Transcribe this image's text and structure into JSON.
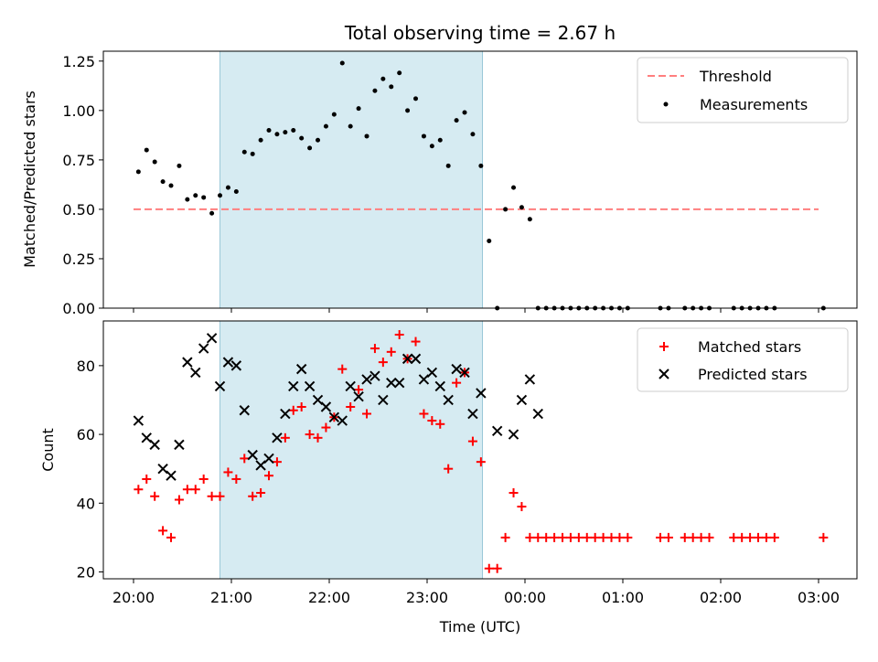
{
  "chart_data": [
    {
      "type": "scatter",
      "title": "Total observing time = 2.67 h",
      "ylabel": "Matched/Predicted stars",
      "xlabel": "",
      "ylim": [
        0,
        1.3
      ],
      "yticks": [
        "0.00",
        "0.25",
        "0.50",
        "0.75",
        "1.00",
        "1.25"
      ],
      "shaded_region": [
        "20:53",
        "23:34"
      ],
      "legend_position": "top-right",
      "colors": {
        "threshold": "#ff7f7f",
        "measurements": "#000000",
        "shade": "#add8e6"
      },
      "threshold": {
        "name": "Threshold",
        "value": 0.5,
        "x": [
          "20:00",
          "03:00"
        ]
      },
      "series": [
        {
          "name": "Measurements",
          "x": [
            "20:03",
            "20:08",
            "20:13",
            "20:18",
            "20:23",
            "20:28",
            "20:33",
            "20:38",
            "20:43",
            "20:48",
            "20:53",
            "20:58",
            "21:03",
            "21:08",
            "21:13",
            "21:18",
            "21:23",
            "21:28",
            "21:33",
            "21:38",
            "21:43",
            "21:48",
            "21:53",
            "21:58",
            "22:03",
            "22:08",
            "22:13",
            "22:18",
            "22:23",
            "22:28",
            "22:33",
            "22:38",
            "22:43",
            "22:48",
            "22:53",
            "22:58",
            "23:03",
            "23:08",
            "23:13",
            "23:18",
            "23:23",
            "23:28",
            "23:33",
            "23:38",
            "23:43",
            "23:48",
            "23:53",
            "23:58",
            "00:03",
            "00:08",
            "00:13",
            "00:18",
            "00:23",
            "00:28",
            "00:33",
            "00:38",
            "00:43",
            "00:48",
            "00:53",
            "00:58",
            "01:03",
            "01:23",
            "01:28",
            "01:38",
            "01:43",
            "01:48",
            "01:53",
            "02:08",
            "02:13",
            "02:18",
            "02:23",
            "02:28",
            "02:33",
            "03:03"
          ],
          "y": [
            0.69,
            0.8,
            0.74,
            0.64,
            0.62,
            0.72,
            0.55,
            0.57,
            0.56,
            0.48,
            0.57,
            0.61,
            0.59,
            0.79,
            0.78,
            0.85,
            0.9,
            0.88,
            0.89,
            0.9,
            0.86,
            0.81,
            0.85,
            0.92,
            0.98,
            1.24,
            0.92,
            1.01,
            0.87,
            1.1,
            1.16,
            1.12,
            1.19,
            1.0,
            1.06,
            0.87,
            0.82,
            0.85,
            0.72,
            0.95,
            0.99,
            0.88,
            0.72,
            0.34,
            0.0,
            0.5,
            0.61,
            0.51,
            0.45,
            0.0,
            0.0,
            0.0,
            0.0,
            0.0,
            0.0,
            0.0,
            0.0,
            0.0,
            0.0,
            0.0,
            0.0,
            0.0,
            0.0,
            0.0,
            0.0,
            0.0,
            0.0,
            0.0,
            0.0,
            0.0,
            0.0,
            0.0,
            0.0,
            0.0
          ]
        }
      ]
    },
    {
      "type": "scatter",
      "xlabel": "Time (UTC)",
      "ylabel": "Count",
      "ylim": [
        18,
        93
      ],
      "yticks": [
        "20",
        "40",
        "60",
        "80"
      ],
      "xticks": [
        "20:00",
        "21:00",
        "22:00",
        "23:00",
        "00:00",
        "01:00",
        "02:00",
        "03:00"
      ],
      "shaded_region": [
        "20:53",
        "23:34"
      ],
      "legend_position": "top-right",
      "colors": {
        "matched": "#ff0000",
        "predicted": "#000000"
      },
      "series": [
        {
          "name": "Matched stars",
          "x": [
            "20:03",
            "20:08",
            "20:13",
            "20:18",
            "20:23",
            "20:28",
            "20:33",
            "20:38",
            "20:43",
            "20:48",
            "20:53",
            "20:58",
            "21:03",
            "21:08",
            "21:13",
            "21:18",
            "21:23",
            "21:28",
            "21:33",
            "21:38",
            "21:43",
            "21:48",
            "21:53",
            "21:58",
            "22:03",
            "22:08",
            "22:13",
            "22:18",
            "22:23",
            "22:28",
            "22:33",
            "22:38",
            "22:43",
            "22:48",
            "22:53",
            "22:58",
            "23:03",
            "23:08",
            "23:13",
            "23:18",
            "23:23",
            "23:28",
            "23:33",
            "23:38",
            "23:43",
            "23:48",
            "23:53",
            "23:58",
            "00:03",
            "00:08",
            "00:13",
            "00:18",
            "00:23",
            "00:28",
            "00:33",
            "00:38",
            "00:43",
            "00:48",
            "00:53",
            "00:58",
            "01:03",
            "01:23",
            "01:28",
            "01:38",
            "01:43",
            "01:48",
            "01:53",
            "02:08",
            "02:13",
            "02:18",
            "02:23",
            "02:28",
            "02:33",
            "03:03"
          ],
          "y": [
            44,
            47,
            42,
            32,
            30,
            41,
            44,
            44,
            47,
            42,
            42,
            49,
            47,
            53,
            42,
            43,
            48,
            52,
            59,
            67,
            68,
            60,
            59,
            62,
            65,
            79,
            68,
            73,
            66,
            85,
            81,
            84,
            89,
            82,
            87,
            66,
            64,
            63,
            50,
            75,
            78,
            58,
            52,
            21,
            21,
            30,
            43,
            39,
            30,
            30,
            30,
            30,
            30,
            30,
            30,
            30,
            30,
            30,
            30,
            30,
            30,
            30,
            30,
            30,
            30,
            30,
            30,
            30,
            30,
            30,
            30,
            30,
            30,
            30
          ]
        },
        {
          "name": "Predicted stars",
          "x": [
            "20:03",
            "20:08",
            "20:13",
            "20:18",
            "20:23",
            "20:28",
            "20:33",
            "20:38",
            "20:43",
            "20:48",
            "20:53",
            "20:58",
            "21:03",
            "21:08",
            "21:13",
            "21:18",
            "21:23",
            "21:28",
            "21:33",
            "21:38",
            "21:43",
            "21:48",
            "21:53",
            "21:58",
            "22:03",
            "22:08",
            "22:13",
            "22:18",
            "22:23",
            "22:28",
            "22:33",
            "22:38",
            "22:43",
            "22:48",
            "22:53",
            "22:58",
            "23:03",
            "23:08",
            "23:13",
            "23:18",
            "23:23",
            "23:28",
            "23:33",
            "23:43",
            "23:53",
            "23:58",
            "00:03",
            "00:08"
          ],
          "y": [
            64,
            59,
            57,
            50,
            48,
            57,
            81,
            78,
            85,
            88,
            74,
            81,
            80,
            67,
            54,
            51,
            53,
            59,
            66,
            74,
            79,
            74,
            70,
            68,
            65,
            64,
            74,
            71,
            76,
            77,
            70,
            75,
            75,
            82,
            82,
            76,
            78,
            74,
            70,
            79,
            78,
            66,
            72,
            61,
            60,
            70,
            76,
            66
          ]
        }
      ]
    }
  ]
}
